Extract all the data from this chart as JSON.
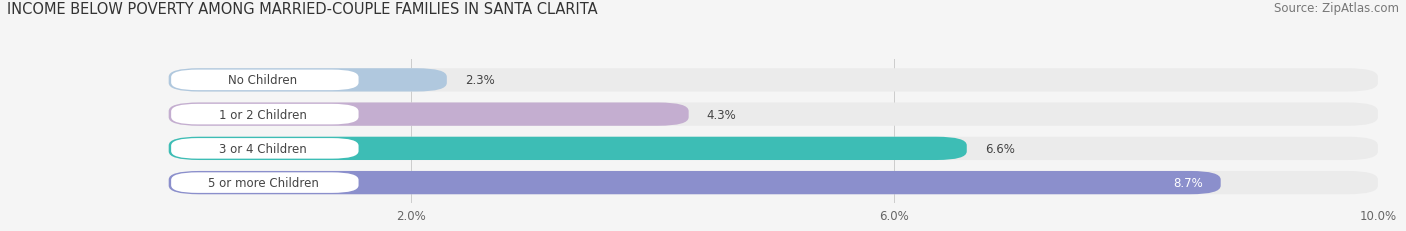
{
  "title": "INCOME BELOW POVERTY AMONG MARRIED-COUPLE FAMILIES IN SANTA CLARITA",
  "source": "Source: ZipAtlas.com",
  "categories": [
    "No Children",
    "1 or 2 Children",
    "3 or 4 Children",
    "5 or more Children"
  ],
  "values": [
    2.3,
    4.3,
    6.6,
    8.7
  ],
  "bar_colors": [
    "#b0c8de",
    "#c4aed0",
    "#3dbdb5",
    "#8b8fcc"
  ],
  "xlim": [
    0,
    10.0
  ],
  "xticks": [
    2.0,
    6.0,
    10.0
  ],
  "xtick_labels": [
    "2.0%",
    "6.0%",
    "10.0%"
  ],
  "bar_height": 0.68,
  "background_color": "#f5f5f5",
  "bar_bg_color": "#ebebeb",
  "title_fontsize": 10.5,
  "source_fontsize": 8.5,
  "label_fontsize": 8.5,
  "value_fontsize": 8.5,
  "tick_fontsize": 8.5
}
